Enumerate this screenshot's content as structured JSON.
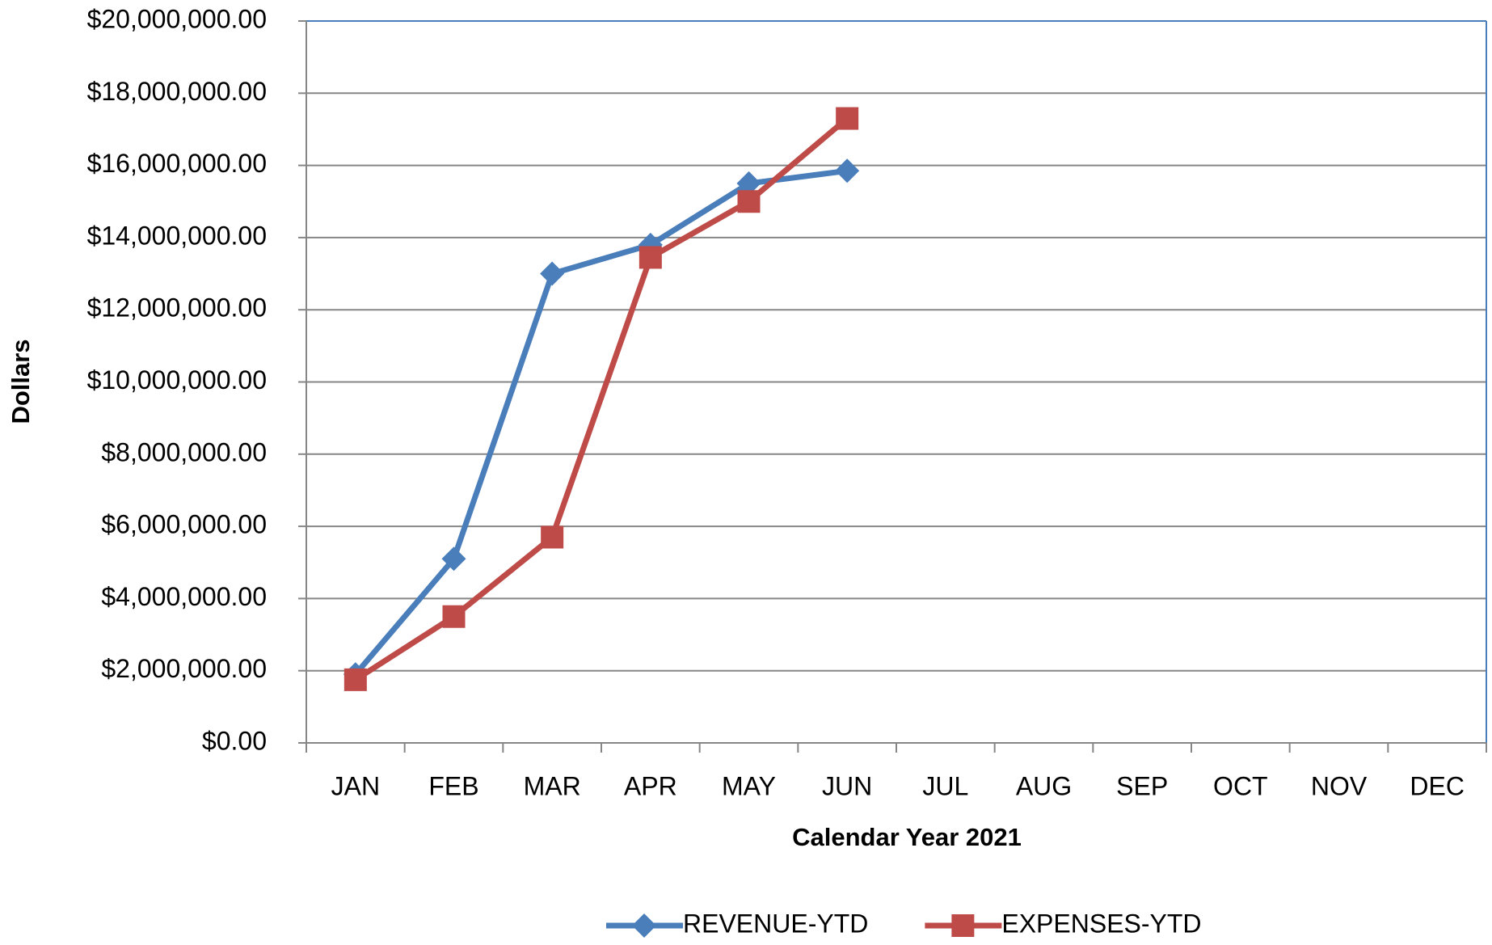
{
  "chart_data": {
    "type": "line",
    "x_label": "Calendar Year 2021",
    "y_label": "Dollars",
    "categories": [
      "JAN",
      "FEB",
      "MAR",
      "APR",
      "MAY",
      "JUN",
      "JUL",
      "AUG",
      "SEP",
      "OCT",
      "NOV",
      "DEC"
    ],
    "series": [
      {
        "name": "REVENUE-YTD",
        "color": "#4a7ebb",
        "marker": "diamond",
        "values": [
          1900000,
          5100000,
          13000000,
          13800000,
          15500000,
          15850000,
          null,
          null,
          null,
          null,
          null,
          null
        ]
      },
      {
        "name": "EXPENSES-YTD",
        "color": "#be4b48",
        "marker": "square",
        "values": [
          1750000,
          3500000,
          5700000,
          13450000,
          15000000,
          17300000,
          null,
          null,
          null,
          null,
          null,
          null
        ]
      }
    ],
    "ylim": [
      0,
      20000000
    ],
    "yticks": [
      {
        "value": 0,
        "label": "$0.00"
      },
      {
        "value": 2000000,
        "label": "$2,000,000.00"
      },
      {
        "value": 4000000,
        "label": "$4,000,000.00"
      },
      {
        "value": 6000000,
        "label": "$6,000,000.00"
      },
      {
        "value": 8000000,
        "label": "$8,000,000.00"
      },
      {
        "value": 10000000,
        "label": "$10,000,000.00"
      },
      {
        "value": 12000000,
        "label": "$12,000,000.00"
      },
      {
        "value": 14000000,
        "label": "$14,000,000.00"
      },
      {
        "value": 16000000,
        "label": "$16,000,000.00"
      },
      {
        "value": 18000000,
        "label": "$18,000,000.00"
      },
      {
        "value": 20000000,
        "label": "$20,000,000.00"
      }
    ],
    "grid": true,
    "legend": "bottom"
  }
}
